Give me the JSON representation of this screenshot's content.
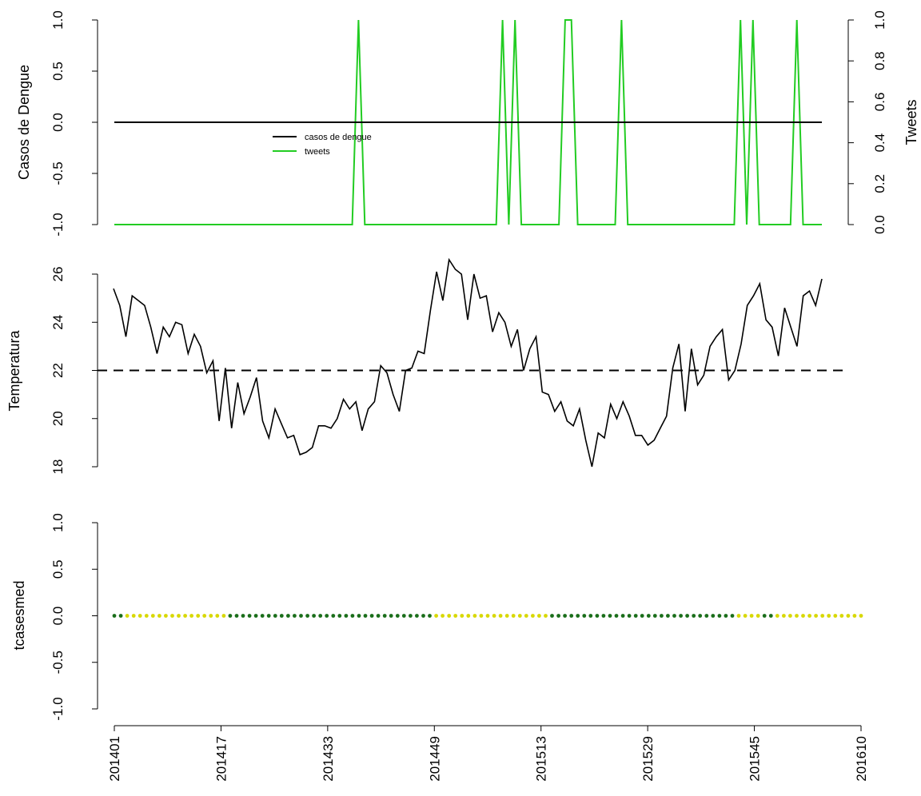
{
  "chart_data": [
    {
      "type": "line",
      "ylabel": "Casos de Dengue",
      "ylabel_right": "Tweets",
      "ylim": [
        -1.0,
        1.0
      ],
      "ylim_right": [
        0.0,
        1.0
      ],
      "yticks": [
        "-1.0",
        "-0.5",
        "0.0",
        "0.5",
        "1.0"
      ],
      "yticks_right": [
        "0.0",
        "0.2",
        "0.4",
        "0.6",
        "0.8",
        "1.0"
      ],
      "legend": {
        "placement": "upper-center-left",
        "entries": [
          {
            "label": "casos de dengue",
            "color": "#000000"
          },
          {
            "label": "tweets",
            "color": "#22cc22"
          }
        ]
      },
      "series": [
        {
          "name": "casos de dengue",
          "axis": "left",
          "color": "#000000",
          "constant": 0.0
        },
        {
          "name": "tweets",
          "axis": "right",
          "color": "#22cc22",
          "spikes": [
            39,
            62,
            64,
            72,
            73,
            81,
            100,
            102,
            109
          ],
          "x_count": 114
        }
      ]
    },
    {
      "type": "line",
      "ylabel": "Temperatura",
      "ylim": [
        18,
        26
      ],
      "yticks": [
        "18",
        "20",
        "22",
        "24",
        "26"
      ],
      "reference_line": 22,
      "values": [
        25.4,
        24.7,
        23.4,
        25.1,
        24.9,
        24.7,
        23.8,
        22.7,
        23.8,
        23.4,
        24.0,
        23.9,
        22.7,
        23.5,
        23.0,
        21.9,
        22.4,
        19.9,
        22.1,
        19.6,
        21.5,
        20.2,
        20.9,
        21.7,
        19.9,
        19.2,
        20.4,
        19.8,
        19.2,
        19.3,
        18.5,
        18.6,
        18.8,
        19.7,
        19.7,
        19.6,
        20.0,
        20.8,
        20.4,
        20.7,
        19.5,
        20.4,
        20.7,
        22.2,
        21.9,
        21.0,
        20.3,
        22.0,
        22.1,
        22.8,
        22.7,
        24.5,
        26.1,
        24.9,
        26.6,
        26.2,
        26.0,
        24.1,
        26.0,
        25.0,
        25.1,
        23.6,
        24.4,
        24.0,
        23.0,
        23.7,
        22.0,
        22.9,
        23.4,
        21.1,
        21.0,
        20.3,
        20.7,
        19.9,
        19.7,
        20.4,
        19.1,
        18.0,
        19.4,
        19.2,
        20.6,
        20.0,
        20.7,
        20.1,
        19.3,
        19.3,
        18.9,
        19.1,
        19.6,
        20.1,
        22.1,
        23.1,
        20.3,
        22.9,
        21.4,
        21.8,
        23.0,
        23.4,
        23.7,
        21.6,
        22.0,
        23.1,
        24.7,
        25.1,
        25.6,
        24.1,
        23.8,
        22.6,
        24.6,
        23.8,
        23.0,
        25.1,
        25.3,
        24.7,
        25.8
      ]
    },
    {
      "type": "scatter",
      "ylabel": "tcasesmed",
      "ylim": [
        -1.0,
        1.0
      ],
      "yticks": [
        "-1.0",
        "-0.5",
        "0.0",
        "0.5",
        "1.0"
      ],
      "x_ticks": [
        "201401",
        "201417",
        "201433",
        "201449",
        "201513",
        "201529",
        "201545",
        "201610"
      ],
      "x_count": 117,
      "value": 0.0,
      "colors": {
        "dark": "#1a6e1a",
        "light": "#d8d800"
      },
      "dark_ranges": [
        [
          0,
          1
        ],
        [
          18,
          49
        ],
        [
          68,
          96
        ],
        [
          101,
          102
        ]
      ]
    }
  ]
}
